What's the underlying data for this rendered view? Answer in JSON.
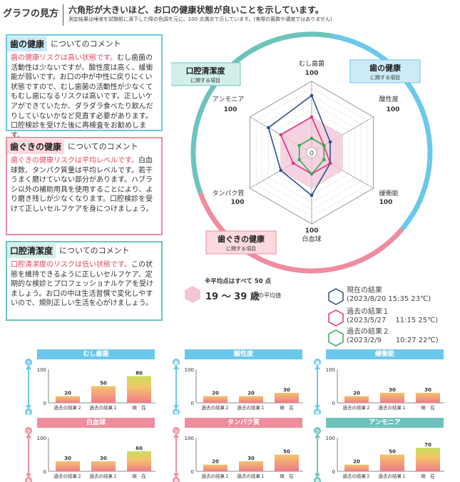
{
  "header": {
    "title": "グラフの見方",
    "main": "六角形が大きいほど、お口の健康状態が良いことを示しています。",
    "note": "測定結果は唾液を試験紙に滴下した際の色調を元に、100 点満点で示しています。(実際の菌数や濃度ではありません)"
  },
  "comments": [
    {
      "tag": "歯の健康",
      "rest": "についてのコメント",
      "highlight": "歯の健康リスクは高い状態です。",
      "body": "むし歯菌の活動性は少ないですが、酸性度は高く、緩衝能が弱いです。お口の中が中性に戻りにくい状態ですので、むし歯菌の活動性が少なくてもむし歯になるリスクは高いです。正しいケアができていたか、ダラダラ食べたり飲んだりしていないかなど見直す必要があります。口腔検診を受けた後に再検査をお勧めします。"
    },
    {
      "tag": "歯ぐきの健康",
      "rest": "についてのコメント",
      "highlight": "歯ぐきの健康リスクは平均レベルです。",
      "body": "白血球数、タンパク質量は平均レベルです。若干うまく磨けていない部分があります。ハブラシ以外の補助用具を使用することにより、より磨き残しが少なくなります。口腔検診を受けて正しいセルフケアを身につけましょう。"
    },
    {
      "tag": "口腔清潔度",
      "rest": "についてのコメント",
      "highlight": "口腔清潔度のリスクは低い状態です。",
      "body": "この状態を維持できるように正しいセルフケア、定期的な検診とプロフェッショナルケアを受けましょう。お口の中は生活習慣で変化しやすいので、規則正しい生活を心がけましょう。"
    }
  ],
  "radar": {
    "axes": [
      "むし歯菌",
      "酸性度",
      "緩衝能",
      "白血球",
      "タンパク質",
      "アンモニア"
    ],
    "max_label": "100",
    "center_label": "0",
    "groups": [
      {
        "title": "歯の健康",
        "sub": "に関する項目",
        "color": "#6ac8ec",
        "bg": "#cdebf7"
      },
      {
        "title": "歯ぐきの健康",
        "sub": "に関する項目",
        "color": "#ef8d9f",
        "bg": "#fbd9df"
      },
      {
        "title": "口腔清潔度",
        "sub": "に関する項目",
        "color": "#6cc4bc",
        "bg": "#d2eeeb"
      }
    ]
  },
  "chart_data": [
    {
      "type": "radar",
      "axes": [
        "むし歯菌",
        "酸性度",
        "緩衝能",
        "白血球",
        "タンパク質",
        "アンモニア"
      ],
      "range": [
        0,
        100
      ],
      "series": [
        {
          "name": "現在の結果",
          "values": [
            80,
            30,
            30,
            60,
            50,
            70
          ],
          "color": "#2e4f8f"
        },
        {
          "name": "過去の結果１",
          "values": [
            50,
            20,
            30,
            30,
            30,
            50
          ],
          "color": "#e2307c"
        },
        {
          "name": "過去の結果２",
          "values": [
            20,
            20,
            20,
            30,
            20,
            20
          ],
          "color": "#3aa85a"
        },
        {
          "name": "19〜39 歳の平均値",
          "values": [
            50,
            50,
            50,
            50,
            50,
            50
          ],
          "color": "#f2c4d6"
        }
      ]
    },
    {
      "type": "bar",
      "title": "むし歯菌",
      "categories": [
        "過去の結果２",
        "過去の結果１",
        "現　在"
      ],
      "values": [
        20,
        50,
        80
      ],
      "ylim": [
        0,
        100
      ]
    },
    {
      "type": "bar",
      "title": "酸性度",
      "categories": [
        "過去の結果２",
        "過去の結果１",
        "現　在"
      ],
      "values": [
        20,
        20,
        30
      ],
      "ylim": [
        0,
        100
      ]
    },
    {
      "type": "bar",
      "title": "緩衝能",
      "categories": [
        "過去の結果２",
        "過去の結果１",
        "現　在"
      ],
      "values": [
        20,
        30,
        30
      ],
      "ylim": [
        0,
        100
      ]
    },
    {
      "type": "bar",
      "title": "白血球",
      "categories": [
        "過去の結果２",
        "過去の結果１",
        "現　在"
      ],
      "values": [
        30,
        30,
        60
      ],
      "ylim": [
        0,
        100
      ]
    },
    {
      "type": "bar",
      "title": "タンパク質",
      "categories": [
        "過去の結果２",
        "過去の結果１",
        "現　在"
      ],
      "values": [
        20,
        30,
        50
      ],
      "ylim": [
        0,
        100
      ]
    },
    {
      "type": "bar",
      "title": "アンモニア",
      "categories": [
        "過去の結果２",
        "過去の結果１",
        "現　在"
      ],
      "values": [
        20,
        50,
        70
      ],
      "ylim": [
        0,
        100
      ]
    }
  ],
  "bar_axis": {
    "max": "100",
    "zero": "0",
    "top_label": "少",
    "bottom_label": "多",
    "top_label_alt": "高",
    "bottom_label_alt": "低"
  },
  "bar_colors": [
    "#6ac8ec",
    "#6ac8ec",
    "#6ac8ec",
    "#ef8d9f",
    "#ef8d9f",
    "#6cc4bc"
  ],
  "average": {
    "note": "※平均点はすべて 50 点",
    "age": "19 〜 39 歳",
    "suffix": "の平均値"
  },
  "legend": [
    {
      "line1": "現在の結果",
      "line2": "(2023/8/20 15:35 23℃)",
      "color": "#2e4f8f"
    },
    {
      "line1": "過去の結果１",
      "line2": "(2023/5/27　 11:15 25℃)",
      "color": "#e2307c"
    },
    {
      "line1": "過去の結果２",
      "line2": "(2023/2/9　　10:27 22℃)",
      "color": "#3aa85a"
    }
  ]
}
